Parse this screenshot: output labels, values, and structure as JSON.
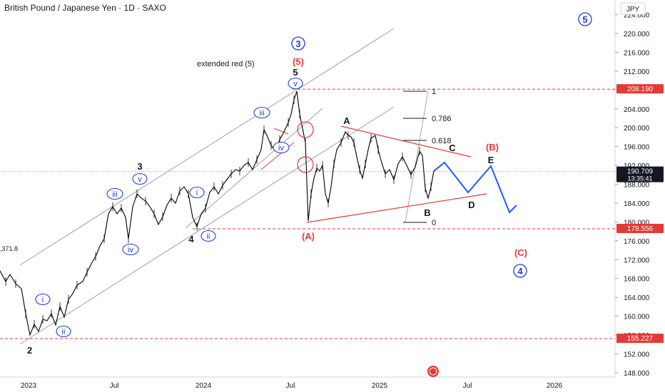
{
  "header": {
    "symbol_title": "British Pound / Japanese Yen · 1D · SAXO",
    "currency": "JPY"
  },
  "price_axis": {
    "ticks": [
      "224.000",
      "220.000",
      "216.000",
      "212.000",
      "208.000",
      "204.000",
      "200.000",
      "196.000",
      "192.000",
      "188.000",
      "184.000",
      "180.000",
      "176.000",
      "172.000",
      "168.000",
      "164.000",
      "160.000",
      "156.000",
      "152.000",
      "148.000"
    ],
    "badges": [
      {
        "label": "208.190",
        "color": "#e53935"
      },
      {
        "label": "190.709",
        "sublabel": "13:35:41",
        "color": "#131722"
      },
      {
        "label": "178.556",
        "color": "#e53935"
      },
      {
        "label": "155.227",
        "color": "#e53935"
      }
    ]
  },
  "time_axis": {
    "ticks": [
      "2023",
      "Jul",
      "2024",
      "Jul",
      "2025",
      "Jul",
      "2026"
    ]
  },
  "annotations": {
    "extended_note": "extended red (5)",
    "left_value": ",371.8",
    "wave_labels_black": [
      "2",
      "3",
      "4",
      "5",
      "A",
      "B",
      "C",
      "D",
      "E"
    ],
    "wave_labels_circled_blue": [
      "i",
      "ii",
      "iii",
      "iv",
      "v",
      "3",
      "4",
      "5"
    ],
    "wave_labels_red": [
      "(5)",
      "(A)",
      "(B)",
      "(C)"
    ],
    "fib_levels": [
      "1",
      "0.786",
      "0.618",
      "0"
    ]
  },
  "colors": {
    "price": "#000000",
    "channel": "#9e9e9e",
    "red": "#e53935",
    "blue": "#1e3fd8",
    "projection": "#1e5bff",
    "text": "#131722"
  },
  "chart_data": {
    "type": "line",
    "title": "British Pound / Japanese Yen · 1D · SAXO",
    "ylabel": "JPY",
    "ylim": [
      146,
      226
    ],
    "x_ticks": [
      "2023",
      "Jul",
      "2024",
      "Jul",
      "2025",
      "Jul",
      "2026"
    ],
    "series": [
      {
        "name": "",
        "x": [
          "2022-11",
          "2022-12",
          "2023-01",
          "2023-02",
          "2023-03",
          "2023-04",
          "2023-05",
          "2023-06",
          "2023-07",
          "2023-08",
          "2023-09",
          "2023-10",
          "2023-11",
          "2023-12",
          "2024-01",
          "2024-02",
          "2024-03",
          "2024-04",
          "2024-05",
          "2024-06",
          "2024-07",
          "2024-07b",
          "2024-08",
          "2024-09",
          "2024-10",
          "2024-11",
          "2024-12",
          "2025-01",
          "2025-02",
          "2025-03",
          "2025-04",
          "2025-04b"
        ],
        "values": [
          170,
          166,
          158,
          162,
          161,
          167,
          172,
          182,
          183,
          185,
          182,
          182,
          187,
          179,
          186,
          189,
          192,
          193,
          197,
          200,
          208.2,
          200,
          179,
          190,
          199,
          194,
          199,
          197,
          189,
          195,
          186,
          190.7
        ]
      }
    ],
    "horizontal_levels": [
      208.19,
      178.556,
      155.227
    ],
    "projection_path": [
      190.7,
      194,
      187,
      195,
      182,
      184
    ]
  }
}
